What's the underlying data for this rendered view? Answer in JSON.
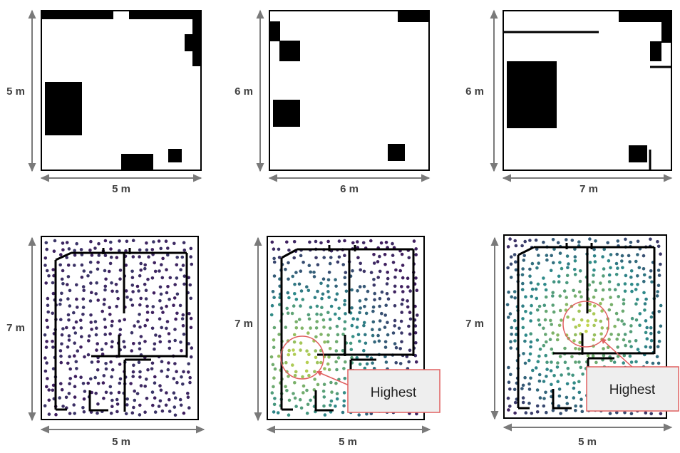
{
  "colors": {
    "wall": "#000000",
    "arrow": "#7a7a7a",
    "label": "#404040",
    "highlight": "#e06060",
    "callout_fill": "#eeeeee",
    "low": "#3f1e5e",
    "mid": "#2d8a8a",
    "high": "#c8d84a"
  },
  "panels_top": [
    {
      "id": "top-1",
      "width_label": "5 m",
      "height_label": "5 m"
    },
    {
      "id": "top-2",
      "width_label": "6 m",
      "height_label": "6 m"
    },
    {
      "id": "top-3",
      "width_label": "7 m",
      "height_label": "6 m"
    }
  ],
  "panels_bottom": [
    {
      "id": "bottom-1",
      "width_label": "5 m",
      "height_label": "7 m",
      "callout": ""
    },
    {
      "id": "bottom-2",
      "width_label": "5 m",
      "height_label": "7 m",
      "callout": "Highest"
    },
    {
      "id": "bottom-3",
      "width_label": "5 m",
      "height_label": "7 m",
      "callout": "Highest"
    }
  ]
}
